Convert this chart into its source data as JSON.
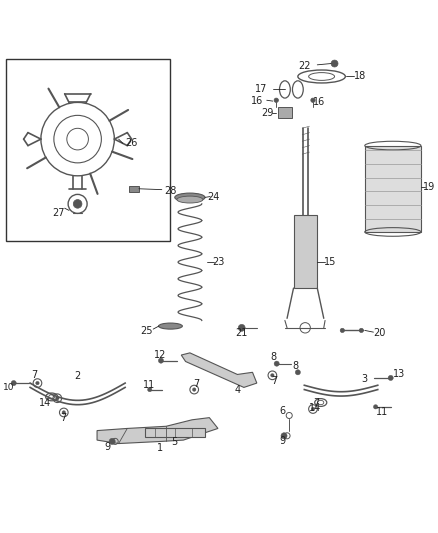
{
  "title": "",
  "bg_color": "#ffffff",
  "figsize": [
    4.38,
    5.33
  ],
  "dpi": 100,
  "line_color": "#222222",
  "label_color": "#222222",
  "part_color": "#555555",
  "box_color": "#333333"
}
